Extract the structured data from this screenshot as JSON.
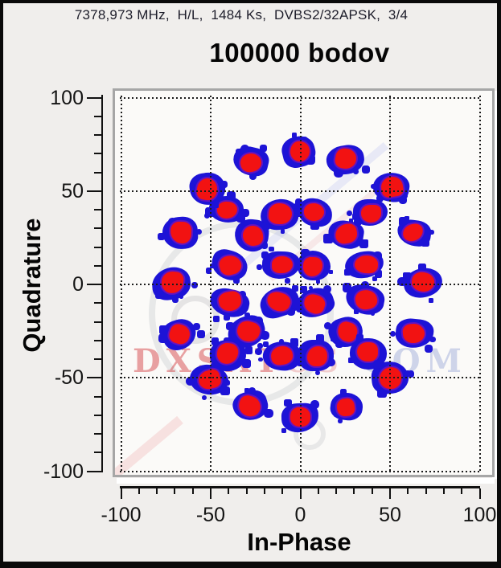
{
  "header": {
    "info_line": "7378,973 MHz,  H/L,  1484 Ks,  DVBS2/32APSK,  3/4"
  },
  "chart_data": {
    "type": "scatter",
    "title": "100000 bodov",
    "xlabel": "In-Phase",
    "ylabel": "Quadrature",
    "xlim": [
      -100,
      100
    ],
    "ylim": [
      -100,
      100
    ],
    "x_ticks": [
      -100,
      -50,
      0,
      50,
      100
    ],
    "y_ticks": [
      -100,
      -50,
      0,
      50,
      100
    ],
    "minor_tick_step": 10,
    "grid": "dotted-major",
    "description": "DVB-S2 32APSK constellation diagram: 4+12+16 symbol clusters plus 4 pilot clusters on the diagonals",
    "series": [
      {
        "name": "inner-ring",
        "ring_radius": 14,
        "points": [
          [
            -11.0,
            10.3
          ],
          [
            7.8,
            10.3
          ],
          [
            -11.9,
            -9.5
          ],
          [
            8.3,
            -9.5
          ]
        ]
      },
      {
        "name": "middle-ring",
        "ring_radius": 39,
        "points": [
          [
            35.7,
            10.3
          ],
          [
            25.3,
            26.7
          ],
          [
            8.3,
            38.3
          ],
          [
            -11.9,
            37.4
          ],
          [
            -27.1,
            26.2
          ],
          [
            -39.7,
            10.3
          ],
          [
            -39.7,
            -9.9
          ],
          [
            -30.0,
            -25.4
          ],
          [
            -10.5,
            -38.3
          ],
          [
            8.7,
            -37.8
          ],
          [
            25.3,
            -25.8
          ],
          [
            36.1,
            -8.2
          ]
        ]
      },
      {
        "name": "pilot-clusters",
        "ring_radius": 56,
        "points": [
          [
            39.0,
            38.5
          ],
          [
            -41.0,
            40.4
          ],
          [
            -40.1,
            -37.8
          ],
          [
            37.9,
            -37.0
          ]
        ]
      },
      {
        "name": "outer-ring",
        "ring_radius": 72,
        "points": [
          [
            68.4,
            0.9
          ],
          [
            63.5,
            27.5
          ],
          [
            50.5,
            52.0
          ],
          [
            25.3,
            66.6
          ],
          [
            -0.9,
            71.0
          ],
          [
            -27.6,
            65.9
          ],
          [
            -51.8,
            51.2
          ],
          [
            -67.0,
            27.5
          ],
          [
            -72.0,
            0.4
          ],
          [
            -67.5,
            -26.8
          ],
          [
            -50.9,
            -51.2
          ],
          [
            -27.6,
            -64.9
          ],
          [
            -0.4,
            -71.4
          ],
          [
            25.8,
            -65.3
          ],
          [
            50.0,
            -49.9
          ],
          [
            63.9,
            -26.2
          ]
        ]
      }
    ],
    "point_style": {
      "core_color": "#f21212",
      "halo_color": "#1d13d6"
    }
  },
  "watermark": {
    "segments": [
      {
        "text": "DXSAT",
        "color": "rgba(205,35,40,0.42)"
      },
      {
        "text": "CS",
        "color": "rgba(225,120,125,0.35)"
      },
      {
        "text": " COM",
        "color": "rgba(140,155,210,0.40)"
      }
    ]
  }
}
